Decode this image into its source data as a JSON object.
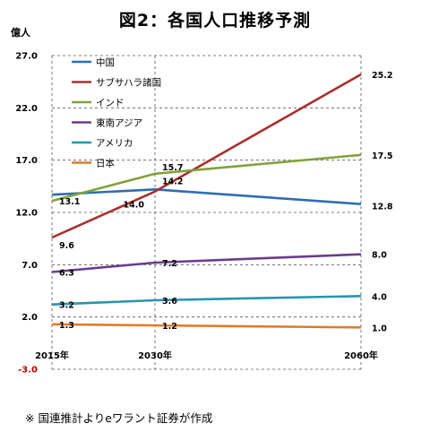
{
  "chart_data": {
    "type": "line",
    "title": "図2：各国人口推移予測",
    "ylabel": "億人",
    "xlabel": "",
    "categories": [
      "2015年",
      "2030年",
      "2060年"
    ],
    "x_years": [
      2015,
      2030,
      2060
    ],
    "ylim": [
      -3.0,
      27.0
    ],
    "yticks": [
      "27.0",
      "22.0",
      "17.0",
      "12.0",
      "7.0",
      "2.0",
      "-3.0"
    ],
    "grid": true,
    "legend_position": "top-left",
    "series": [
      {
        "name": "中国",
        "color": "#2e6db4",
        "values": [
          13.7,
          14.2,
          12.8
        ],
        "labels": [
          "",
          "14.2",
          "12.8"
        ]
      },
      {
        "name": "サブサハラ諸国",
        "color": "#a9302c",
        "values": [
          9.6,
          14.0,
          25.2
        ],
        "labels": [
          "9.6",
          "14.0",
          "25.2"
        ]
      },
      {
        "name": "インド",
        "color": "#7fa23a",
        "values": [
          13.1,
          15.7,
          17.5
        ],
        "labels": [
          "13.1",
          "15.7",
          "17.5"
        ]
      },
      {
        "name": "東南アジア",
        "color": "#6a3d8f",
        "values": [
          6.3,
          7.2,
          8.0
        ],
        "labels": [
          "6.3",
          "7.2",
          "8.0"
        ]
      },
      {
        "name": "アメリカ",
        "color": "#2a93ad",
        "values": [
          3.2,
          3.6,
          4.0
        ],
        "labels": [
          "3.2",
          "3.6",
          "4.0"
        ]
      },
      {
        "name": "日本",
        "color": "#e07b2a",
        "values": [
          1.3,
          1.2,
          1.0
        ],
        "labels": [
          "1.3",
          "1.2",
          "1.0"
        ]
      }
    ]
  },
  "note": "※ 国連推計よりeワラント証券が作成"
}
